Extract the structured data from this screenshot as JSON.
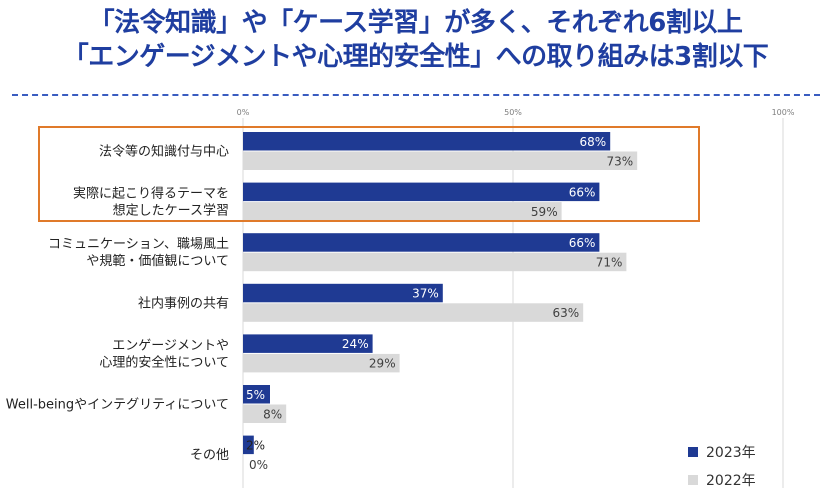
{
  "title": {
    "line1": "「法令知識」や「ケース学習」が多く、それぞれ6割以上",
    "line2": "「エンゲージメントや心理的安全性」への取り組みは3割以下"
  },
  "colors": {
    "series_2023": "#1f3a93",
    "series_2022": "#d9d9d9",
    "title": "#1f3ea0",
    "highlight_border": "#e07a2a",
    "divider": "#3a5cc0"
  },
  "chart_data": {
    "type": "bar",
    "orientation": "horizontal",
    "categories": [
      "法令等の知識付与中心",
      "実際に起こり得るテーマを\n想定したケース学習",
      "コミュニケーション、職場風土\nや規範・価値観について",
      "社内事例の共有",
      "エンゲージメントや\n心理的安全性について",
      "Well-beingやインテグリティについて",
      "その他"
    ],
    "series": [
      {
        "name": "2023年",
        "values": [
          68,
          66,
          66,
          37,
          24,
          5,
          2
        ],
        "labels": [
          "68%",
          "66%",
          "66%",
          "37%",
          "24%",
          "5%",
          "2%"
        ]
      },
      {
        "name": "2022年",
        "values": [
          73,
          59,
          71,
          63,
          29,
          8,
          0
        ],
        "labels": [
          "73%",
          "59%",
          "71%",
          "63%",
          "29%",
          "8%",
          "0%"
        ]
      }
    ],
    "xlim": [
      0,
      100
    ],
    "xticks": [
      "0%",
      "50%",
      "100%"
    ],
    "grid": true,
    "legend_position": "bottom-right",
    "highlighted_categories": [
      0,
      1
    ]
  }
}
